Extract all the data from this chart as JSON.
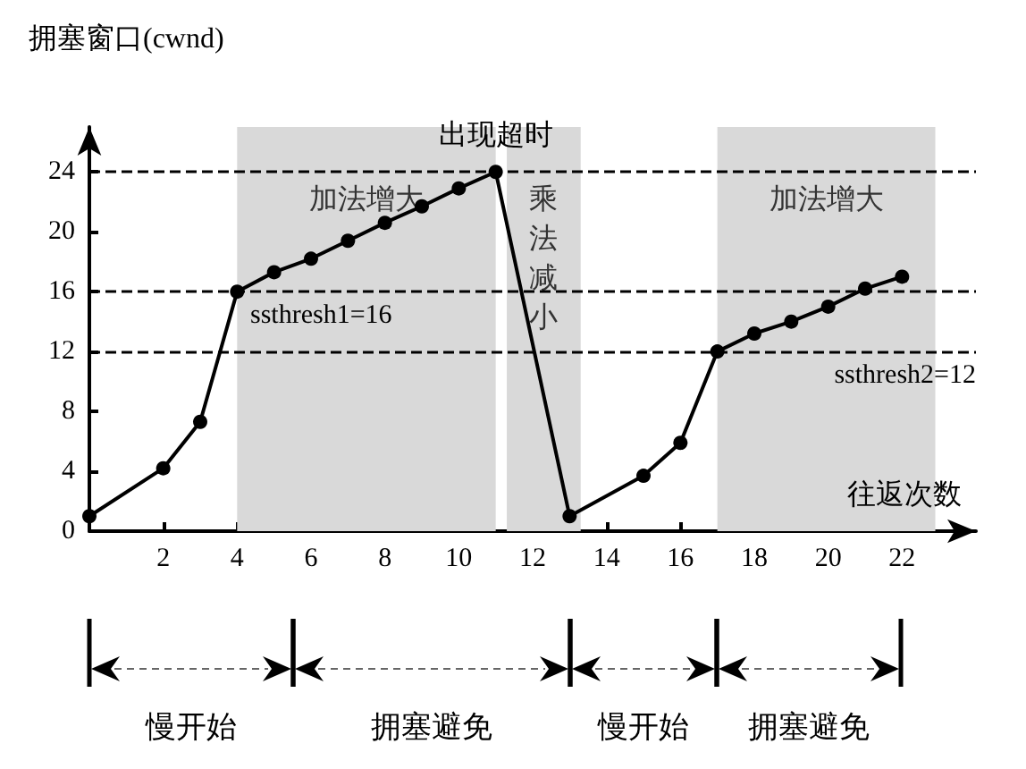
{
  "chart_data": {
    "type": "line",
    "ylabel": "拥塞窗口(cwnd)",
    "xlabel": "往返次数",
    "x": [
      0,
      2,
      3,
      4,
      5,
      6,
      7,
      8,
      9,
      10,
      11,
      13,
      15,
      16,
      17,
      18,
      19,
      20,
      21,
      22
    ],
    "values": [
      1,
      4.2,
      7.3,
      16,
      17.3,
      18.2,
      19.4,
      20.6,
      21.7,
      22.9,
      24,
      1,
      3.7,
      5.9,
      12,
      13.2,
      14,
      15,
      16.2,
      17
    ],
    "color": "#000000",
    "marker": "circle",
    "line_style": "solid",
    "xlim": [
      0,
      24
    ],
    "xticks": [
      2,
      4,
      6,
      8,
      10,
      12,
      14,
      16,
      18,
      20,
      22
    ],
    "ylim": [
      0,
      27
    ],
    "yticks": [
      0,
      4,
      8,
      12,
      16,
      20,
      24
    ],
    "ref_lines": [
      {
        "axis": "y",
        "value": 24,
        "line_style": "dashed"
      },
      {
        "axis": "y",
        "value": 16,
        "label": "ssthresh1=16",
        "line_style": "dashed"
      },
      {
        "axis": "y",
        "value": 12,
        "label": "ssthresh2=12",
        "line_style": "dashed"
      }
    ],
    "bands": [
      {
        "axis": "x",
        "from": 4,
        "to": 11,
        "label": "加法增大",
        "color": "#d9d9d9"
      },
      {
        "axis": "x",
        "from": 11.3,
        "to": 13.3,
        "label": "乘法减小",
        "color": "#d9d9d9"
      },
      {
        "axis": "x",
        "from": 17,
        "to": 22.9,
        "label": "加法增大",
        "color": "#d9d9d9"
      }
    ],
    "annotations": [
      {
        "text": "出现超时",
        "x": 11,
        "y": 24
      },
      "慢开始",
      "拥塞避免",
      "慢开始",
      "拥塞避免"
    ]
  }
}
